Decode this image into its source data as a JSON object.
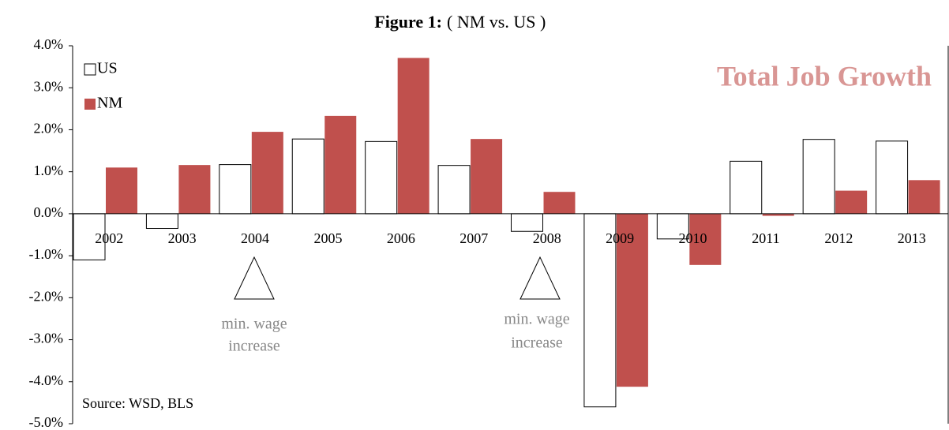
{
  "chart_data": {
    "type": "bar",
    "title": "Figure 1:",
    "subtitle": "( NM vs. US )",
    "categories": [
      "2002",
      "2003",
      "2004",
      "2005",
      "2006",
      "2007",
      "2008",
      "2009",
      "2010",
      "2011",
      "2012",
      "2013"
    ],
    "series": [
      {
        "name": "US",
        "color": "#ffffff",
        "values": [
          -1.1,
          -0.35,
          1.17,
          1.78,
          1.72,
          1.15,
          -0.42,
          -4.6,
          -0.6,
          1.25,
          1.77,
          1.73
        ]
      },
      {
        "name": "NM",
        "color": "#c0504d",
        "values": [
          1.1,
          1.16,
          1.95,
          2.33,
          3.71,
          1.78,
          0.52,
          -4.12,
          -1.22,
          -0.05,
          0.55,
          0.8
        ]
      }
    ],
    "ylim": [
      -5,
      4
    ],
    "yticks": [
      {
        "value": 4,
        "label": "4.0%"
      },
      {
        "value": 3,
        "label": "3.0%"
      },
      {
        "value": 2,
        "label": "2.0%"
      },
      {
        "value": 1,
        "label": "1.0%"
      },
      {
        "value": 0,
        "label": "0.0%"
      },
      {
        "value": -1,
        "label": "-1.0%"
      },
      {
        "value": -2,
        "label": "-2.0%"
      },
      {
        "value": -3,
        "label": "-3.0%"
      },
      {
        "value": -4,
        "label": "-4.0%"
      },
      {
        "value": -5,
        "label": "-5.0%"
      }
    ],
    "legend": "top-left",
    "annotations": {
      "headline": "Total Job Growth",
      "note1": [
        "min. wage",
        "increase"
      ],
      "note2": [
        "min. wage",
        "increase"
      ],
      "source": "Source: WSD, BLS"
    }
  }
}
